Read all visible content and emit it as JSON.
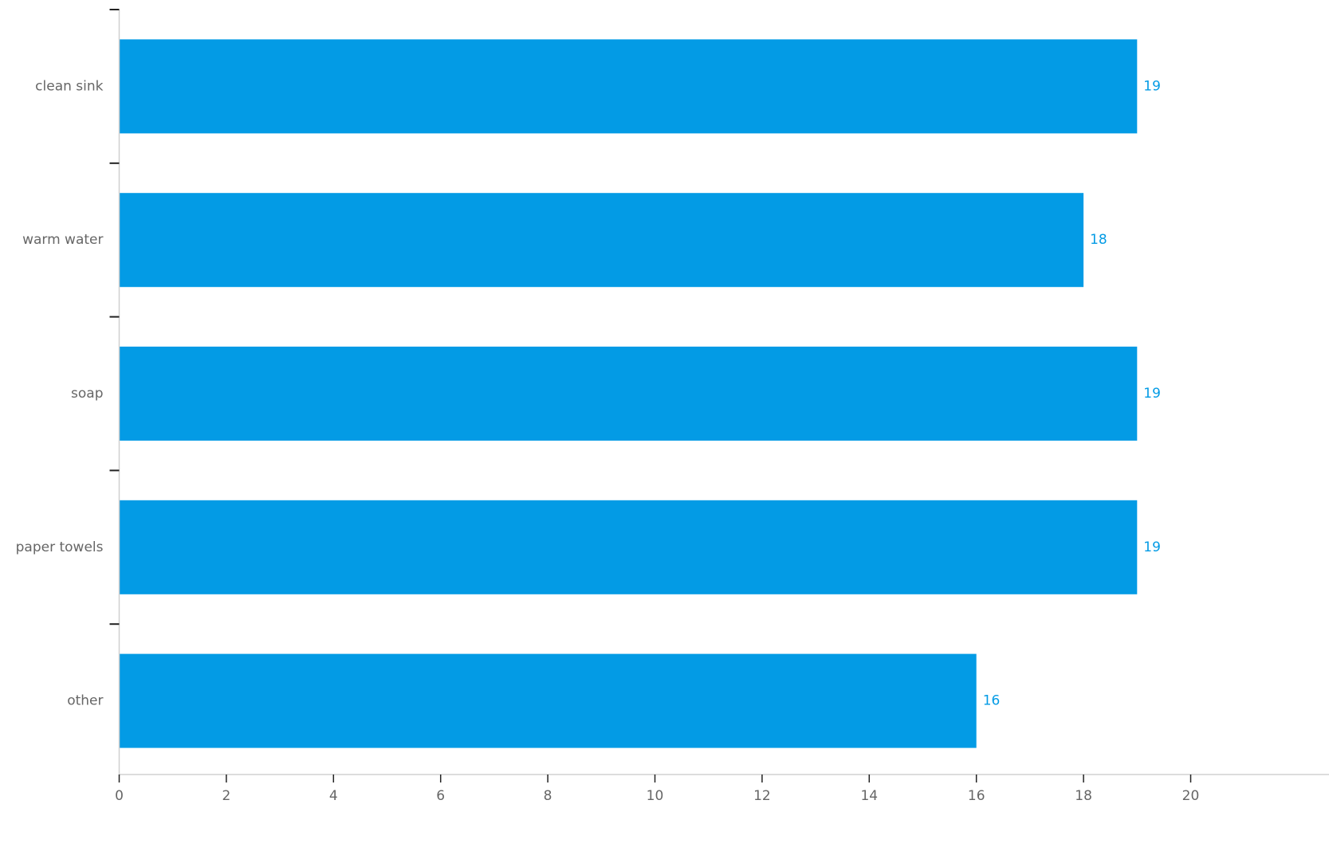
{
  "chart_data": {
    "type": "bar",
    "orientation": "horizontal",
    "categories": [
      "clean sink",
      "warm water",
      "soap",
      "paper towels",
      "other"
    ],
    "values": [
      19,
      18,
      19,
      19,
      16
    ],
    "value_labels": [
      "19",
      "18",
      "19",
      "19",
      "16"
    ],
    "xlim": [
      0,
      21
    ],
    "x_ticks": [
      0,
      2,
      4,
      6,
      8,
      10,
      12,
      14,
      16,
      18,
      20
    ],
    "x_tick_labels": [
      "0",
      "2",
      "4",
      "6",
      "8",
      "10",
      "12",
      "14",
      "16",
      "18",
      "20"
    ],
    "grid": false,
    "legend": "none",
    "title": "",
    "xlabel": "",
    "ylabel": "",
    "colors": {
      "bar": "#039BE5",
      "value_label": "#039BE5"
    }
  }
}
